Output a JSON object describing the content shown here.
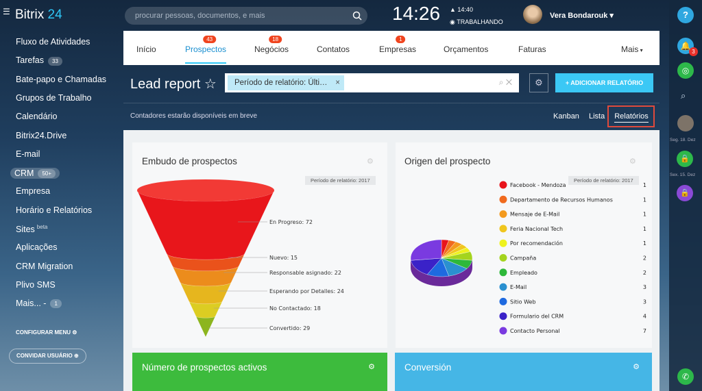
{
  "header": {
    "logo_name": "Bitrix",
    "logo_number": "24",
    "search_placeholder": "procurar pessoas, documentos, e mais",
    "clock": "14:26",
    "alarm": "14:40",
    "status": "TRABALHANDO",
    "user": "Vera Bondarouk"
  },
  "sidebar": {
    "items": [
      {
        "label": "Fluxo de Atividades"
      },
      {
        "label": "Tarefas",
        "badge": 33
      },
      {
        "label": "Bate-papo e Chamadas"
      },
      {
        "label": "Grupos de Trabalho"
      },
      {
        "label": "Calendário"
      },
      {
        "label": "Bitrix24.Drive"
      },
      {
        "label": "E-mail"
      },
      {
        "label": "CRM",
        "badge": "50+"
      },
      {
        "label": "Empresa"
      },
      {
        "label": "Horário e Relatórios"
      },
      {
        "label": "Sites",
        "sup": "beta"
      },
      {
        "label": "Aplicações"
      },
      {
        "label": "CRM Migration"
      },
      {
        "label": "Plivo SMS"
      },
      {
        "label": "Mais... -",
        "badge": 1
      }
    ],
    "configure": "CONFIGURAR MENU",
    "invite": "CONVIDAR USUÁRIO"
  },
  "tabs": [
    {
      "label": "Início"
    },
    {
      "label": "Prospectos",
      "badge": 43
    },
    {
      "label": "Negócios",
      "badge": 18
    },
    {
      "label": "Contatos"
    },
    {
      "label": "Empresas",
      "badge": 1
    },
    {
      "label": "Orçamentos"
    },
    {
      "label": "Faturas"
    },
    {
      "label": "Mais"
    }
  ],
  "toolbar": {
    "title": "Lead report",
    "filter": "Período de relatório: Últi…",
    "add_button": "+ ADICIONAR RELATÓRIO",
    "note": "Contadores estarão disponíveis em breve",
    "views": [
      "Kanban",
      "Lista",
      "Relatórios"
    ]
  },
  "right_bar": {
    "notifications": 3,
    "dates": [
      "Seg. 18. Dez",
      "Sex. 15. Dez"
    ]
  },
  "funnel_widget": {
    "title": "Embudo de prospectos",
    "period": "Período de relatório: 2017",
    "stages": [
      "En Progreso: 72",
      "Nuevo: 15",
      "Responsable asignado: 22",
      "Esperando por Detalles: 24",
      "No Contactado: 18",
      "Convertido: 29"
    ]
  },
  "pie_widget": {
    "title": "Origen del prospecto",
    "period": "Período de relatório: 2017",
    "legend": [
      {
        "name": "Facebook - Mendoza",
        "color": "#e8141c",
        "value": 1
      },
      {
        "name": "Departamento de Recursos Humanos",
        "color": "#f06a1e",
        "value": 1
      },
      {
        "name": "Mensaje de E-Mail",
        "color": "#f39a1e",
        "value": 1
      },
      {
        "name": "Feria Nacional Tech",
        "color": "#f0c61e",
        "value": 1
      },
      {
        "name": "Por recomendación",
        "color": "#eef21e",
        "value": 1
      },
      {
        "name": "Campaña",
        "color": "#a4d41e",
        "value": 2
      },
      {
        "name": "Empleado",
        "color": "#2eb83a",
        "value": 2
      },
      {
        "name": "E-Mail",
        "color": "#2a90d0",
        "value": 3
      },
      {
        "name": "Sitio Web",
        "color": "#1e6ae0",
        "value": 3
      },
      {
        "name": "Formulario del CRM",
        "color": "#3a22c8",
        "value": 4
      },
      {
        "name": "Contacto Personal",
        "color": "#7a3ae0",
        "value": 7
      }
    ]
  },
  "bottom_widgets": [
    "Número de prospectos activos",
    "Conversión"
  ]
}
